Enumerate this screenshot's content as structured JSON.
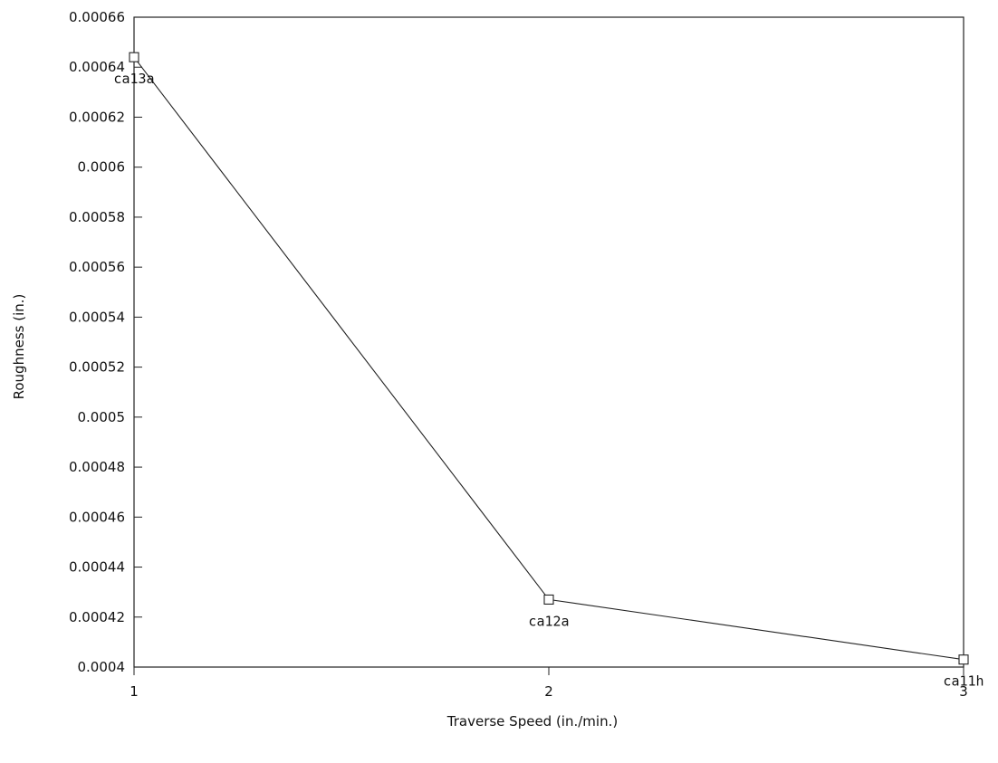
{
  "chart_data": {
    "type": "line",
    "xlabel": "Traverse Speed (in./min.)",
    "ylabel": "Roughness (in.)",
    "xlim": [
      1,
      3
    ],
    "ylim": [
      0.0004,
      0.00066
    ],
    "x_ticks": [
      "1",
      "2",
      "3"
    ],
    "y_ticks": [
      "0.0004",
      "0.00042",
      "0.00044",
      "0.00046",
      "0.00048",
      "0.0005",
      "0.00052",
      "0.00054",
      "0.00056",
      "0.00058",
      "0.0006",
      "0.00062",
      "0.00064",
      "0.00066"
    ],
    "grid": false,
    "legend": "none",
    "line_color": "#222222",
    "marker": "open-square",
    "series": [
      {
        "points": [
          {
            "x": 1,
            "y": 0.000644,
            "label": "ca13a"
          },
          {
            "x": 2,
            "y": 0.000427,
            "label": "ca12a"
          },
          {
            "x": 3,
            "y": 0.000403,
            "label": "ca11h"
          }
        ]
      }
    ]
  }
}
